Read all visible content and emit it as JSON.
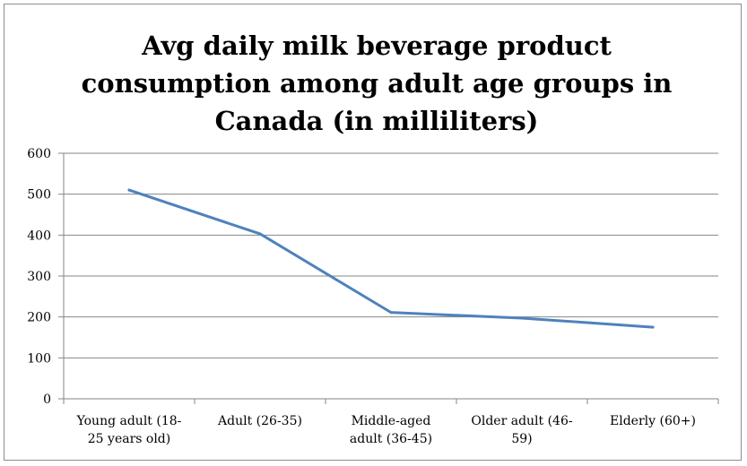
{
  "chart_data": {
    "type": "line",
    "title": "Avg daily milk beverage product consumption among adult age groups in Canada (in milliliters)",
    "categories": [
      [
        "Young adult (18-",
        "25 years old)"
      ],
      [
        "Adult (26-35)"
      ],
      [
        "Middle-aged",
        "adult (36-45)"
      ],
      [
        "Older adult (46-",
        "59)"
      ],
      [
        "Elderly (60+)"
      ]
    ],
    "series": [
      {
        "values": [
          510,
          403,
          211,
          197,
          175
        ]
      }
    ],
    "ylim": [
      0,
      600
    ],
    "yticks": [
      0,
      100,
      200,
      300,
      400,
      500,
      600
    ],
    "xlabel": "",
    "ylabel": "",
    "grid": true,
    "legend": "none",
    "colors": {
      "line": "#4f81bd",
      "grid": "#868686",
      "axis": "#868686"
    }
  }
}
